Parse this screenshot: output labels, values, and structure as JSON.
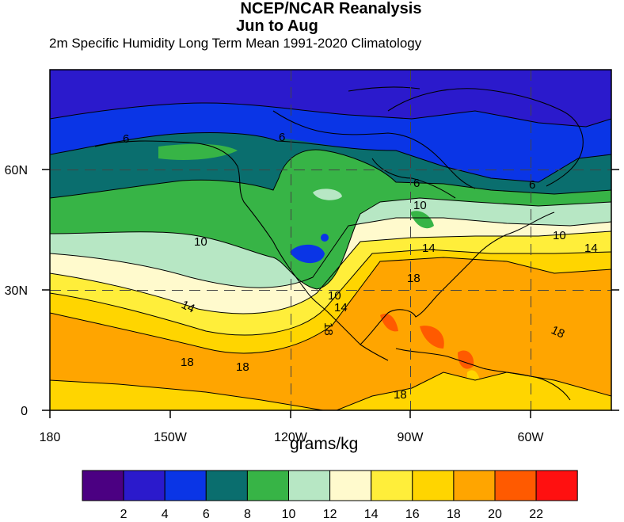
{
  "header": {
    "title": "NCEP/NCAR Reanalysis",
    "season": "Jun to Aug",
    "subtitle": "2m Specific Humidity Long Term Mean 1991-2020 Climatology"
  },
  "map": {
    "lon_range": [
      -180,
      -47
    ],
    "lat_range": [
      0,
      80
    ],
    "gridlines": "dashed at 30N, 60N, 120W, 90W, 60W",
    "x_ticks": [
      "180",
      "150W",
      "120W",
      "90W",
      "60W"
    ],
    "y_ticks": [
      "0",
      "30N",
      "60N"
    ],
    "contour_labels": [
      "6",
      "6",
      "6",
      "6",
      "10",
      "10",
      "10",
      "10",
      "14",
      "14",
      "14",
      "14",
      "18",
      "18",
      "18",
      "18",
      "18",
      "18"
    ]
  },
  "colorbar": {
    "units": "grams/kg",
    "labels": [
      "2",
      "4",
      "6",
      "8",
      "10",
      "12",
      "14",
      "16",
      "18",
      "20",
      "22"
    ],
    "colors": [
      "#4b0082",
      "#2b1acc",
      "#0a35e6",
      "#0a6e6e",
      "#37b446",
      "#b7e7c4",
      "#fffacd",
      "#ffee3a",
      "#ffd500",
      "#ffa500",
      "#ff5a00",
      "#ff1010"
    ]
  }
}
